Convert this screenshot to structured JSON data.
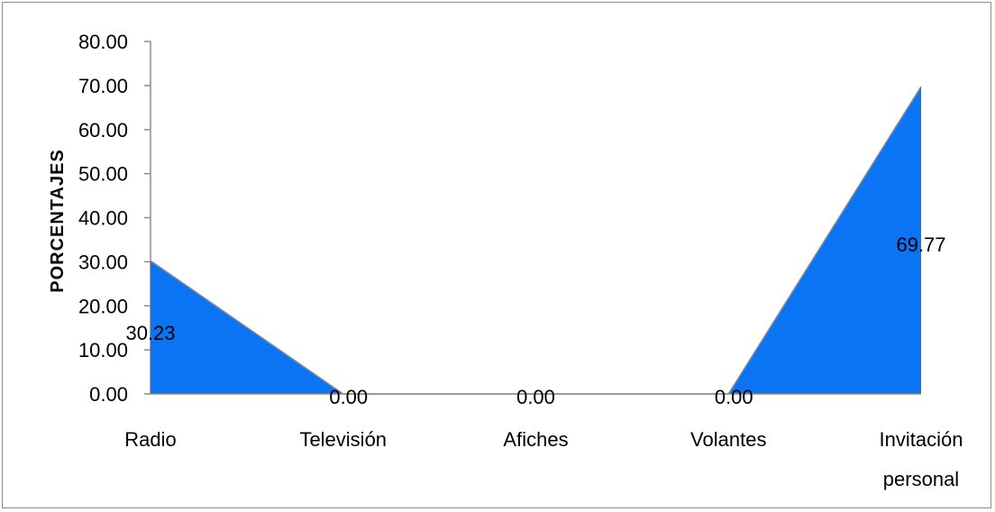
{
  "chart_data": {
    "type": "area",
    "title": "",
    "xlabel": "",
    "ylabel": "PORCENTAJES",
    "categories": [
      "Radio",
      "Televisión",
      "Afiches",
      "Volantes",
      "Invitación personal"
    ],
    "category_lines": [
      [
        "Radio"
      ],
      [
        "Televisión"
      ],
      [
        "Afiches"
      ],
      [
        "Volantes"
      ],
      [
        "Invitación",
        "personal"
      ]
    ],
    "values": [
      30.23,
      0.0,
      0.0,
      0.0,
      69.77
    ],
    "data_labels": [
      "30.23",
      "0.00",
      "0.00",
      "0.00",
      "69.77"
    ],
    "ylim": [
      0,
      80
    ],
    "yticks": [
      "0.00",
      "10.00",
      "20.00",
      "30.00",
      "40.00",
      "50.00",
      "60.00",
      "70.00",
      "80.00"
    ],
    "grid": false,
    "legend": "none",
    "fill_color": "#0a74f5",
    "line_color": "#8c8c8c"
  }
}
